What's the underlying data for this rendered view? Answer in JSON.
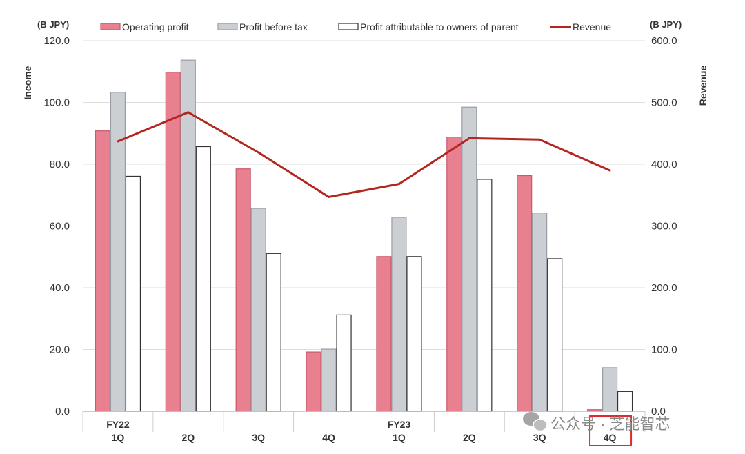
{
  "chart_data": {
    "type": "bar",
    "categories": [
      {
        "fy": "FY22",
        "q": "1Q"
      },
      {
        "fy": "",
        "q": "2Q"
      },
      {
        "fy": "",
        "q": "3Q"
      },
      {
        "fy": "",
        "q": "4Q"
      },
      {
        "fy": "FY23",
        "q": "1Q"
      },
      {
        "fy": "",
        "q": "2Q"
      },
      {
        "fy": "",
        "q": "3Q"
      },
      {
        "fy": "",
        "q": "4Q"
      }
    ],
    "series": [
      {
        "name": "Operating profit",
        "kind": "bar",
        "axis": "left",
        "color": "#e8808f",
        "edge": "#c85a6a",
        "values": [
          90.8,
          109.8,
          78.5,
          19.2,
          50.1,
          88.8,
          76.3,
          0.5
        ]
      },
      {
        "name": "Profit before tax",
        "kind": "bar",
        "axis": "left",
        "color": "#cbced3",
        "edge": "#9a9ea4",
        "values": [
          103.3,
          113.7,
          65.7,
          20.1,
          62.8,
          98.5,
          64.2,
          14.1
        ]
      },
      {
        "name": "Profit attributable to owners of parent",
        "kind": "bar",
        "axis": "left",
        "color": "#ffffff",
        "edge": "#333333",
        "values": [
          76.1,
          85.7,
          51.1,
          31.2,
          50.1,
          75.1,
          49.4,
          6.4
        ]
      },
      {
        "name": "Revenue",
        "kind": "line",
        "axis": "right",
        "color": "#b3261e",
        "values": [
          437,
          484,
          419,
          347,
          368,
          442,
          440,
          390
        ]
      }
    ],
    "yaxis_left": {
      "label": "Income",
      "unit": "(B JPY)",
      "min": 0,
      "max": 120,
      "step": 20
    },
    "yaxis_right": {
      "label": "Revenue",
      "unit": "(B JPY)",
      "min": 0,
      "max": 600,
      "step": 100
    },
    "grid": true,
    "legend_position": "top",
    "highlight_category_index": 7,
    "highlight_color": "#e0282e"
  },
  "watermark": {
    "text": "公众号 · 芝能智芯"
  }
}
